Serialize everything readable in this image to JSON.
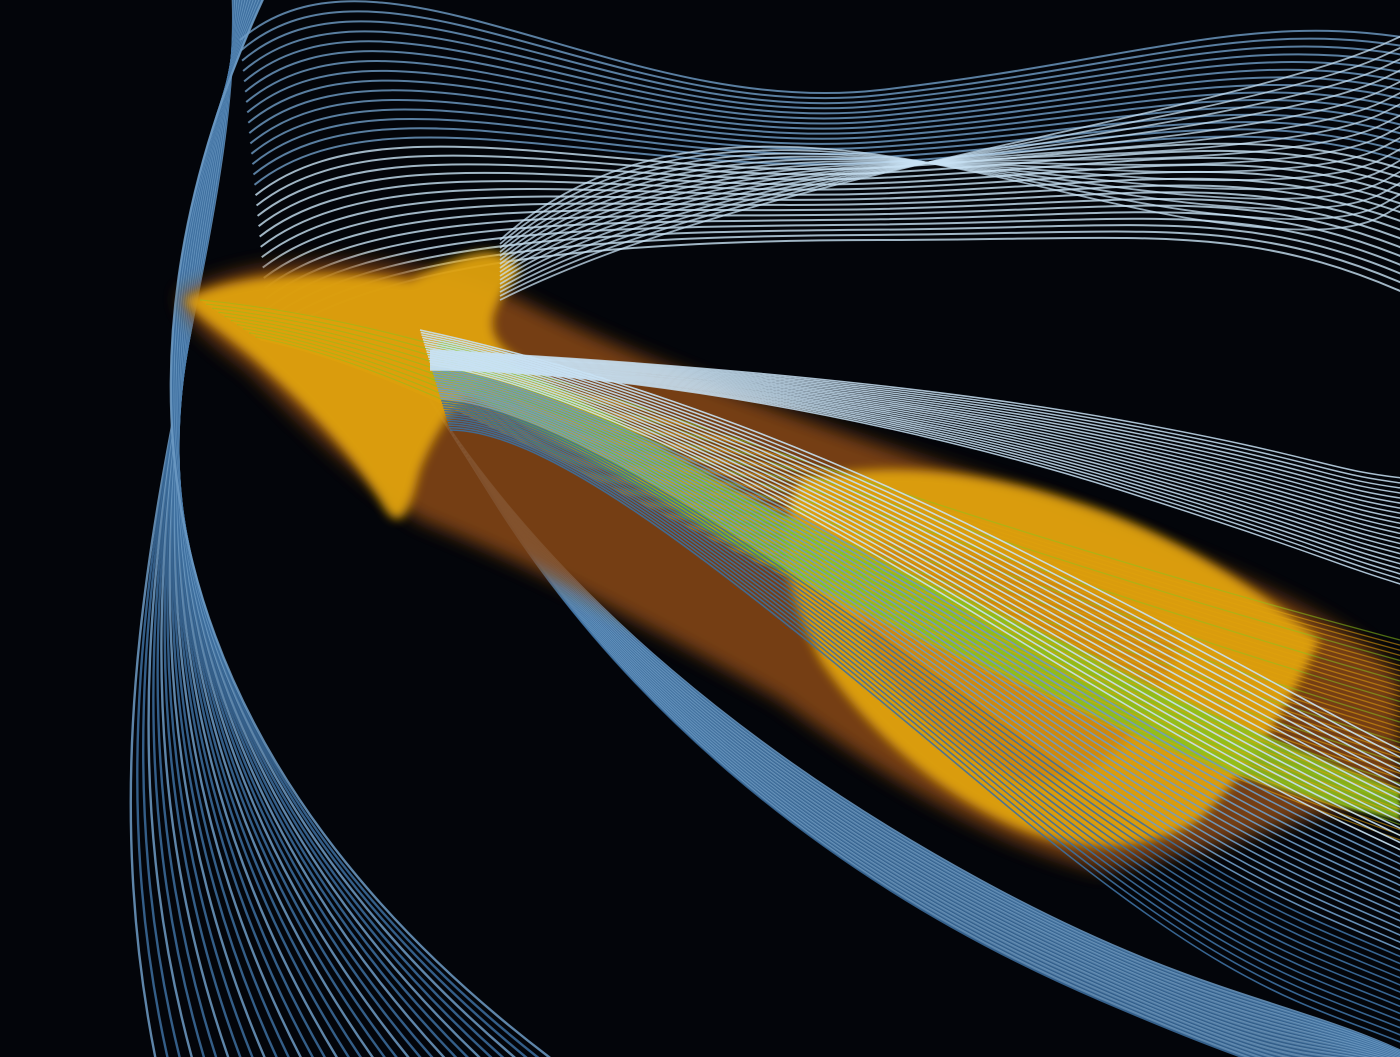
{
  "image": {
    "subject": "",
    "background_color": "#03050a",
    "streamline_colors": {
      "dark": "#3d6f9f",
      "mid": "#6f9cc6",
      "light": "#c8e2f4"
    },
    "volume_colors": {
      "orange": "#e0a20c",
      "amber": "#c77a0a",
      "brown": "#8a4a12",
      "green": "#8cc21c"
    }
  }
}
